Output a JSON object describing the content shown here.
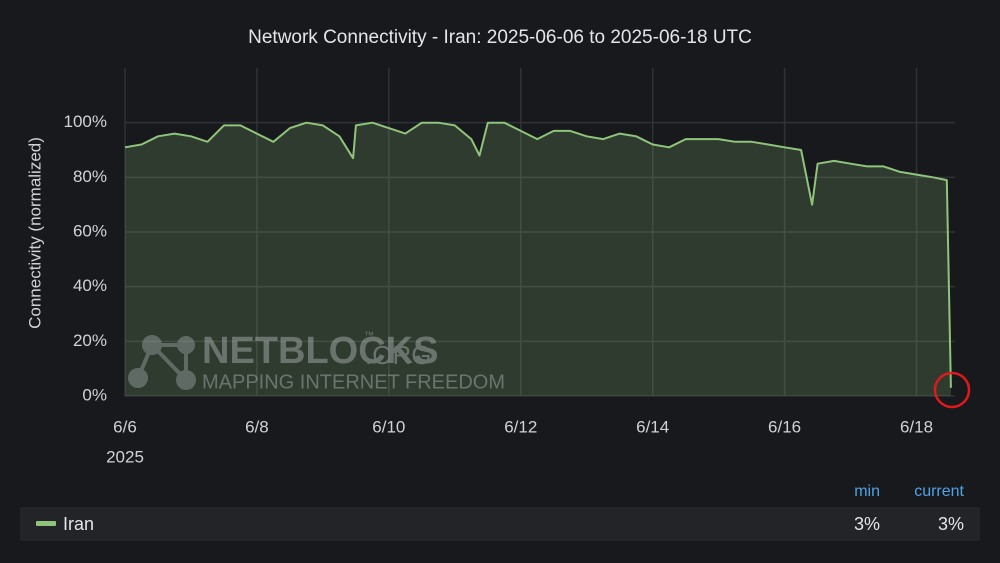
{
  "chart_data": {
    "type": "area-line",
    "title": "Network Connectivity - Iran: 2025-06-06 to 2025-06-18 UTC",
    "y_label": "Connectivity (normalized)",
    "x": [
      "2025-06-06T00:00",
      "2025-06-06T06:00",
      "2025-06-06T12:00",
      "2025-06-06T18:00",
      "2025-06-07T00:00",
      "2025-06-07T06:00",
      "2025-06-07T12:00",
      "2025-06-07T18:00",
      "2025-06-08T00:00",
      "2025-06-08T06:00",
      "2025-06-08T12:00",
      "2025-06-08T18:00",
      "2025-06-09T00:00",
      "2025-06-09T06:00",
      "2025-06-09T11:00",
      "2025-06-09T12:00",
      "2025-06-09T18:00",
      "2025-06-10T00:00",
      "2025-06-10T06:00",
      "2025-06-10T12:00",
      "2025-06-10T18:00",
      "2025-06-11T00:00",
      "2025-06-11T06:00",
      "2025-06-11T09:00",
      "2025-06-11T12:00",
      "2025-06-11T18:00",
      "2025-06-12T00:00",
      "2025-06-12T06:00",
      "2025-06-12T12:00",
      "2025-06-12T18:00",
      "2025-06-13T00:00",
      "2025-06-13T06:00",
      "2025-06-13T12:00",
      "2025-06-13T18:00",
      "2025-06-14T00:00",
      "2025-06-14T06:00",
      "2025-06-14T12:00",
      "2025-06-14T18:00",
      "2025-06-15T00:00",
      "2025-06-15T06:00",
      "2025-06-15T12:00",
      "2025-06-15T18:00",
      "2025-06-16T00:00",
      "2025-06-16T06:00",
      "2025-06-16T10:00",
      "2025-06-16T12:00",
      "2025-06-16T18:00",
      "2025-06-17T00:00",
      "2025-06-17T06:00",
      "2025-06-17T12:00",
      "2025-06-17T18:00",
      "2025-06-18T00:00",
      "2025-06-18T06:00",
      "2025-06-18T11:00",
      "2025-06-18T12:30"
    ],
    "series": [
      {
        "name": "Iran",
        "color": "#8fc47a",
        "values": [
          91,
          92,
          95,
          96,
          95,
          93,
          99,
          99,
          96,
          93,
          98,
          100,
          99,
          95,
          87,
          99,
          100,
          98,
          96,
          100,
          100,
          99,
          94,
          88,
          100,
          100,
          97,
          94,
          97,
          97,
          95,
          94,
          96,
          95,
          92,
          91,
          94,
          94,
          94,
          93,
          93,
          92,
          91,
          90,
          70,
          85,
          86,
          85,
          84,
          84,
          82,
          81,
          80,
          79,
          3
        ]
      }
    ],
    "xlim": [
      "2025-06-06T00:00",
      "2025-06-18T14:00"
    ],
    "xticks": [
      {
        "value": "2025-06-06T00:00",
        "label": "6/6"
      },
      {
        "value": "2025-06-08T00:00",
        "label": "6/8"
      },
      {
        "value": "2025-06-10T00:00",
        "label": "6/10"
      },
      {
        "value": "2025-06-12T00:00",
        "label": "6/12"
      },
      {
        "value": "2025-06-14T00:00",
        "label": "6/14"
      },
      {
        "value": "2025-06-16T00:00",
        "label": "6/16"
      },
      {
        "value": "2025-06-18T00:00",
        "label": "6/18"
      }
    ],
    "x_year_label": "2025",
    "ylim": [
      0,
      120
    ],
    "yticks": [
      {
        "value": 0,
        "label": "0%"
      },
      {
        "value": 20,
        "label": "20%"
      },
      {
        "value": 40,
        "label": "40%"
      },
      {
        "value": 60,
        "label": "60%"
      },
      {
        "value": 80,
        "label": "80%"
      },
      {
        "value": 100,
        "label": "100%"
      }
    ],
    "grid": true,
    "legend_stats": {
      "columns": [
        "min",
        "current"
      ],
      "values": [
        3,
        3
      ],
      "value_labels": [
        "3%",
        "3%"
      ]
    },
    "watermark": {
      "brand": "NETBLOCKS",
      "suffix": ".ORG",
      "tm": "™",
      "tagline": "MAPPING INTERNET FREEDOM"
    }
  }
}
